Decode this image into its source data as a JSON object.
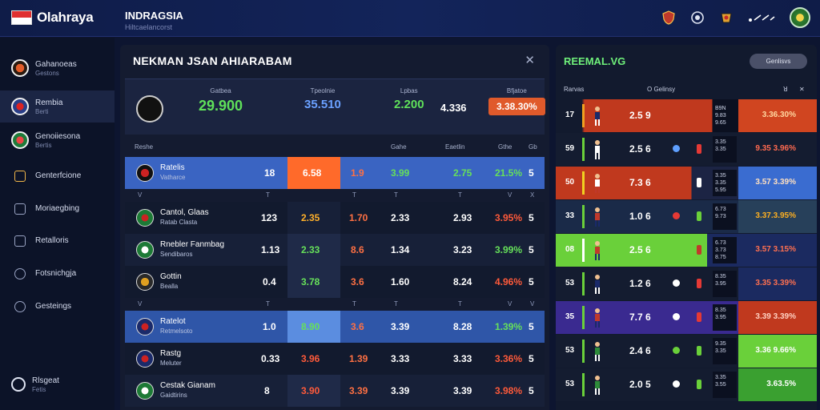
{
  "header": {
    "brand": "Olahraya",
    "region_title": "INDRAGSIA",
    "region_sub": "Hiltcaelancorst"
  },
  "sidebar": {
    "items": [
      {
        "label": "Gahanoeas",
        "sub": "Gestons",
        "icon": "football-badge-icon"
      },
      {
        "label": "Rembia",
        "sub": "Berti",
        "icon": "team-badge-icon"
      },
      {
        "label": "Genoiiesona",
        "sub": "Bertis",
        "icon": "league-badge-icon"
      },
      {
        "label": "Genterfcione",
        "sub": "",
        "icon": "trophy-icon"
      },
      {
        "label": "Moriaegbing",
        "sub": "",
        "icon": "calendar-icon"
      },
      {
        "label": "Retalloris",
        "sub": "",
        "icon": "list-icon"
      },
      {
        "label": "Fotsnichgja",
        "sub": "",
        "icon": "edit-icon"
      },
      {
        "label": "Gesteings",
        "sub": "",
        "icon": "settings-icon"
      }
    ],
    "footer_label": "Rlsgeat",
    "footer_sub": "Fetis"
  },
  "main": {
    "title": "NEKMAN JSAN AHIARABAM",
    "summary": {
      "c1_label": "Gatbea",
      "c1_val": "29.900",
      "c2_label": "Tpeolnie",
      "c2_val": "35.510",
      "c3_label": "Lpbas",
      "c3_val": "2.200",
      "c4_val": "4.336",
      "c5_label": "Bfjatoe",
      "c5_val": "3.38.30%"
    },
    "headers": {
      "h1": "Reshe",
      "h2": "Gahe",
      "h3": "Eaetlin",
      "h4": "Gthe",
      "h5": "Gb"
    },
    "rows": [
      {
        "name": "Ratelis",
        "sub": "Vatharce",
        "c1": "18",
        "c2": "6.58",
        "c3": "1.9",
        "c4": "3.99",
        "c5": "2.75",
        "c6": "21.5%",
        "c7": "5"
      },
      {
        "name": "Cantol, Glaas",
        "sub": "Ratab Clasta",
        "c1": "123",
        "c2": "2.35",
        "c3": "1.70",
        "c4": "2.33",
        "c5": "2.93",
        "c6": "3.95%",
        "c7": "5"
      },
      {
        "name": "Rnebler Fanmbag",
        "sub": "Sendibaros",
        "c1": "1.13",
        "c2": "2.33",
        "c3": "8.6",
        "c4": "1.34",
        "c5": "3.23",
        "c6": "3.99%",
        "c7": "5"
      },
      {
        "name": "Gottin",
        "sub": "Bealla",
        "c1": "0.4",
        "c2": "3.78",
        "c3": "3.6",
        "c4": "1.60",
        "c5": "8.24",
        "c6": "4.96%",
        "c7": "5"
      },
      {
        "name": "Ratelot",
        "sub": "Retmelsoto",
        "c1": "1.0",
        "c2": "8.90",
        "c3": "3.6",
        "c4": "3.39",
        "c5": "8.28",
        "c6": "1.39%",
        "c7": "5"
      },
      {
        "name": "Rastg",
        "sub": "Meluter",
        "c1": "0.33",
        "c2": "3.96",
        "c3": "1.39",
        "c4": "3.33",
        "c5": "3.33",
        "c6": "3.36%",
        "c7": "5"
      },
      {
        "name": "Cestak Gianam",
        "sub": "Gaidtirins",
        "c1": "8",
        "c2": "3.90",
        "c3": "3.39",
        "c4": "3.39",
        "c5": "3.39",
        "c6": "3.98%",
        "c7": "5"
      }
    ]
  },
  "right": {
    "title": "REEMAL.VG",
    "button": "Genlisvs",
    "header_left": "Rarvas",
    "header_mid": "O Gelinsy",
    "rows": [
      {
        "num": "17",
        "val": "2.5 9",
        "mini": "B9N 9.83 9.65",
        "right_val": "3.36.30%"
      },
      {
        "num": "59",
        "val": "2.5 6",
        "mini": "3.35 3.35",
        "right_val": "9.35 3.96%"
      },
      {
        "num": "50",
        "val": "7.3 6",
        "mini": "3.35 3.35 5.95",
        "right_val": "3.57 3.39%"
      },
      {
        "num": "33",
        "val": "1.0 6",
        "mini": "6.73 9.73",
        "right_val": "3.37.3.95%"
      },
      {
        "num": "08",
        "val": "2.5 6",
        "mini": "6.73 3.73 8.75",
        "right_val": "3.57 3.15%"
      },
      {
        "num": "53",
        "val": "1.2 6",
        "mini": "8.35 3.95",
        "right_val": "3.35 3.39%"
      },
      {
        "num": "35",
        "val": "7.7 6",
        "mini": "8.35 3.95",
        "right_val": "3.39 3.39%"
      },
      {
        "num": "53",
        "val": "2.4 6",
        "mini": "9.35 3.35",
        "right_val": "3.36 9.66%"
      },
      {
        "num": "53",
        "val": "2.0 5",
        "mini": "3.35 3.55",
        "right_val": "3.63.5%"
      }
    ]
  }
}
